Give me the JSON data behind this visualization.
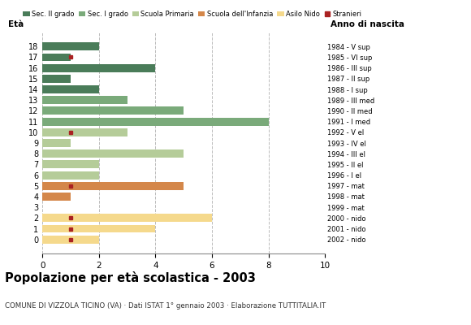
{
  "ages": [
    18,
    17,
    16,
    15,
    14,
    13,
    12,
    11,
    10,
    9,
    8,
    7,
    6,
    5,
    4,
    3,
    2,
    1,
    0
  ],
  "birth_years": [
    "1984 - V sup",
    "1985 - VI sup",
    "1986 - III sup",
    "1987 - II sup",
    "1988 - I sup",
    "1989 - III med",
    "1990 - II med",
    "1991 - I med",
    "1992 - V el",
    "1993 - IV el",
    "1994 - III el",
    "1995 - II el",
    "1996 - I el",
    "1997 - mat",
    "1998 - mat",
    "1999 - mat",
    "2000 - nido",
    "2001 - nido",
    "2002 - nido"
  ],
  "bar_values": [
    2,
    1,
    4,
    1,
    2,
    3,
    5,
    8,
    3,
    1,
    5,
    2,
    2,
    5,
    1,
    0,
    6,
    4,
    2
  ],
  "bar_colors": [
    "#4a7c59",
    "#4a7c59",
    "#4a7c59",
    "#4a7c59",
    "#4a7c59",
    "#7aaa7a",
    "#7aaa7a",
    "#7aaa7a",
    "#b5cc99",
    "#b5cc99",
    "#b5cc99",
    "#b5cc99",
    "#b5cc99",
    "#d4874a",
    "#d4874a",
    "#d4874a",
    "#f5d98c",
    "#f5d98c",
    "#f5d98c"
  ],
  "stranieri_ages": [
    17,
    10,
    5,
    2,
    1,
    0
  ],
  "stranieri_values": [
    1,
    1,
    1,
    1,
    1,
    1
  ],
  "legend_labels": [
    "Sec. II grado",
    "Sec. I grado",
    "Scuola Primaria",
    "Scuola dell'Infanzia",
    "Asilo Nido",
    "Stranieri"
  ],
  "legend_colors": [
    "#4a7c59",
    "#7aaa7a",
    "#b5cc99",
    "#d4874a",
    "#f5d98c",
    "#aa2222"
  ],
  "title": "Popolazione per età scolastica - 2003",
  "subtitle": "COMUNE DI VIZZOLA TICINO (VA) · Dati ISTAT 1° gennaio 2003 · Elaborazione TUTTITALIA.IT",
  "xlabel_left": "Età",
  "xlabel_right": "Anno di nascita",
  "xlim": [
    0,
    10
  ],
  "xticks": [
    0,
    2,
    4,
    6,
    8,
    10
  ],
  "bg_color": "#ffffff",
  "grid_color": "#bbbbbb"
}
